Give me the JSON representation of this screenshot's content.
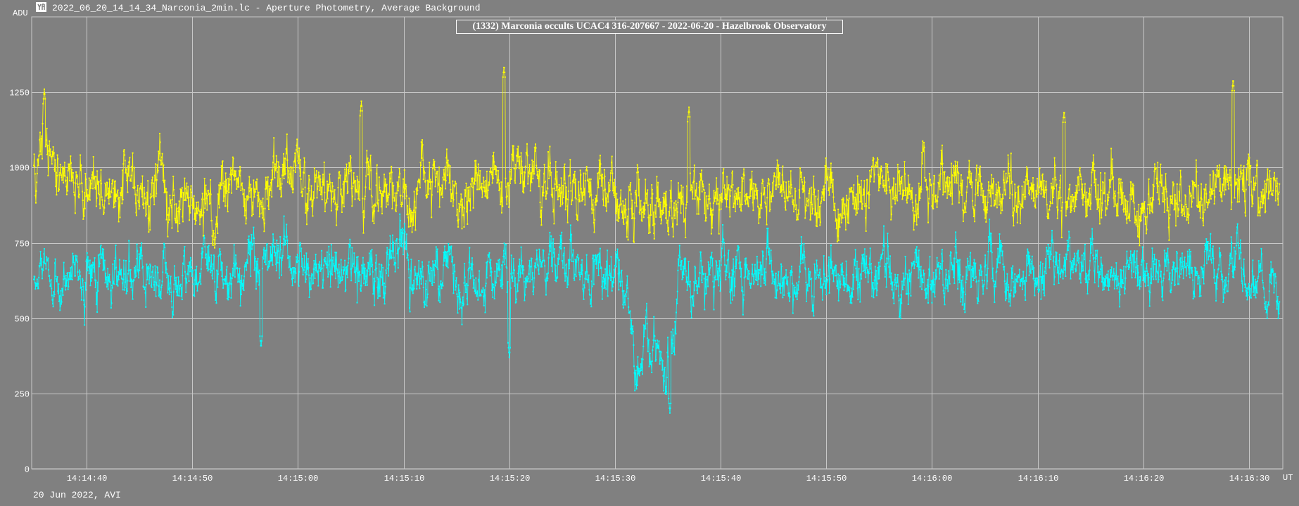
{
  "window": {
    "title": "2022_06_20_14_14_34_Narconia_2min.lc - Aperture Photometry, Average Background",
    "icon": "app-logo-icon"
  },
  "footer": {
    "note": "20 Jun 2022, AVI"
  },
  "colors": {
    "background": "#808080",
    "grid": "#c8c8c8",
    "target": "#ffff00",
    "comparison": "#00ffff"
  },
  "chart_data": {
    "type": "line",
    "title": "(1332) Marconia occults UCAC4 316-207667 - 2022-06-20 - Hazelbrook Observatory",
    "ylabel": "ADU",
    "xlabel": "UT",
    "ylim": [
      0,
      1500
    ],
    "yticks": [
      0,
      250,
      500,
      750,
      1000,
      1250
    ],
    "ytick_labels": [
      "0",
      "250",
      "500",
      "750",
      "1000",
      "1250"
    ],
    "xlim": [
      "14:14:34.8",
      "14:16:33.2"
    ],
    "xticks": [
      "14:14:40",
      "14:14:50",
      "14:15:00",
      "14:15:10",
      "14:15:20",
      "14:15:30",
      "14:15:40",
      "14:15:50",
      "14:16:00",
      "14:16:10",
      "14:16:20",
      "14:16:30"
    ],
    "grid": true,
    "markers": true,
    "sample_interval_s": 0.04,
    "series": [
      {
        "color": "#ffff00",
        "x": [
          "14:14:35",
          "14:14:40",
          "14:14:45",
          "14:14:50",
          "14:14:55",
          "14:15:00",
          "14:15:05",
          "14:15:10",
          "14:15:15",
          "14:15:20",
          "14:15:25",
          "14:15:30",
          "14:15:32",
          "14:15:35",
          "14:15:40",
          "14:15:45",
          "14:15:50",
          "14:15:55",
          "14:16:00",
          "14:16:05",
          "14:16:10",
          "14:16:15",
          "14:16:20",
          "14:16:25",
          "14:16:30",
          "14:16:33"
        ],
        "values": [
          1000,
          960,
          930,
          880,
          940,
          960,
          900,
          930,
          930,
          960,
          960,
          880,
          900,
          890,
          920,
          900,
          860,
          910,
          900,
          920,
          910,
          910,
          890,
          890,
          950,
          900
        ],
        "spread": 120,
        "peaks": [
          {
            "x": "14:14:36.0",
            "y": 1260
          },
          {
            "x": "14:15:19.5",
            "y": 1340
          },
          {
            "x": "14:16:28.5",
            "y": 1295
          },
          {
            "x": "14:15:06.0",
            "y": 1220
          },
          {
            "x": "14:15:37.0",
            "y": 1200
          },
          {
            "x": "14:16:12.5",
            "y": 1190
          }
        ]
      },
      {
        "color": "#00ffff",
        "x": [
          "14:14:35",
          "14:14:40",
          "14:14:45",
          "14:14:50",
          "14:14:55",
          "14:15:00",
          "14:15:05",
          "14:15:10",
          "14:15:15",
          "14:15:20",
          "14:15:25",
          "14:15:30",
          "14:15:31",
          "14:15:32",
          "14:15:33",
          "14:15:34",
          "14:15:35",
          "14:15:35.6",
          "14:15:36",
          "14:15:40",
          "14:15:45",
          "14:15:50",
          "14:15:55",
          "14:16:00",
          "14:16:05",
          "14:16:10",
          "14:16:15",
          "14:16:20",
          "14:16:25",
          "14:16:30",
          "14:16:33"
        ],
        "values": [
          640,
          660,
          640,
          650,
          660,
          680,
          650,
          660,
          640,
          650,
          660,
          650,
          640,
          330,
          380,
          400,
          320,
          420,
          640,
          650,
          640,
          640,
          660,
          640,
          660,
          650,
          640,
          660,
          640,
          650,
          620
        ],
        "spread": 110,
        "dips": [
          {
            "x": "14:15:35.2",
            "y": 185
          },
          {
            "x": "14:15:20.0",
            "y": 370
          },
          {
            "x": "14:14:56.5",
            "y": 400
          }
        ]
      }
    ]
  }
}
